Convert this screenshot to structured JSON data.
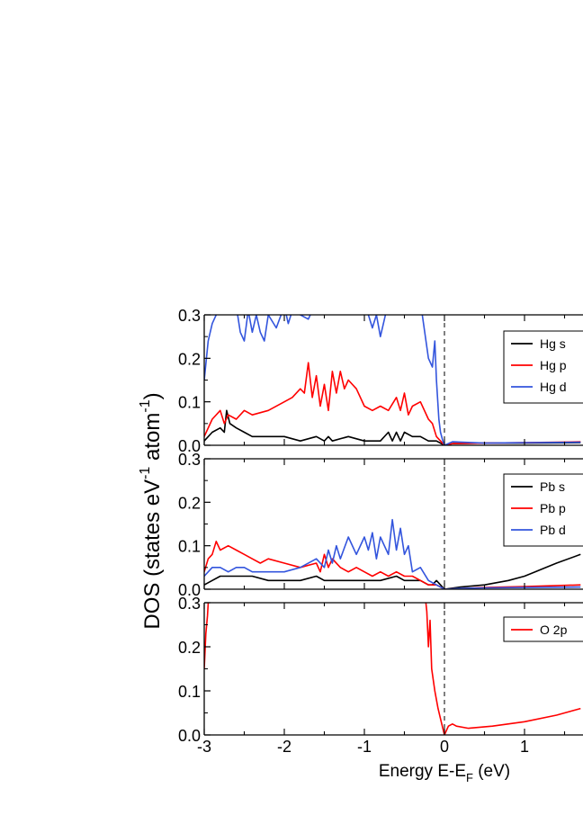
{
  "chart_data": {
    "type": "line",
    "xlabel_main": "Energy E-E",
    "xlabel_sub": "F",
    "xlabel_tail": " (eV)",
    "ylabel_main": "DOS (states eV",
    "ylabel_sup1": "-1",
    "ylabel_mid": " atom",
    "ylabel_sup2": "-1",
    "ylabel_tail": ")",
    "x_ticks": [
      "-3",
      "-2",
      "-1",
      "0",
      "1"
    ],
    "xlim": [
      -3,
      1.7
    ],
    "fermi_level": 0,
    "panels": [
      {
        "ylim": [
          0,
          0.3
        ],
        "y_ticks": [
          "0.0",
          "0.1",
          "0.2",
          "0.3"
        ],
        "legend": [
          "Hg s",
          "Hg p",
          "Hg d"
        ],
        "series": [
          {
            "name": "Hg s",
            "color": "#000000",
            "x": [
              -3,
              -2.9,
              -2.8,
              -2.75,
              -2.72,
              -2.68,
              -2.6,
              -2.5,
              -2.4,
              -2.2,
              -2.0,
              -1.8,
              -1.6,
              -1.5,
              -1.45,
              -1.4,
              -1.2,
              -1.0,
              -0.8,
              -0.7,
              -0.65,
              -0.6,
              -0.55,
              -0.5,
              -0.4,
              -0.3,
              -0.2,
              -0.1,
              0,
              0.1,
              0.5,
              1.0,
              1.7
            ],
            "y": [
              0.01,
              0.03,
              0.04,
              0.03,
              0.08,
              0.05,
              0.04,
              0.03,
              0.02,
              0.02,
              0.02,
              0.01,
              0.02,
              0.01,
              0.02,
              0.01,
              0.02,
              0.01,
              0.01,
              0.03,
              0.01,
              0.03,
              0.01,
              0.03,
              0.02,
              0.02,
              0.01,
              0.01,
              0.0,
              0.004,
              0.005,
              0.005,
              0.006
            ]
          },
          {
            "name": "Hg p",
            "color": "#ff0000",
            "x": [
              -3,
              -2.9,
              -2.8,
              -2.75,
              -2.7,
              -2.6,
              -2.5,
              -2.4,
              -2.2,
              -2.0,
              -1.9,
              -1.8,
              -1.75,
              -1.7,
              -1.65,
              -1.6,
              -1.55,
              -1.5,
              -1.45,
              -1.4,
              -1.35,
              -1.3,
              -1.25,
              -1.2,
              -1.1,
              -1.0,
              -0.9,
              -0.8,
              -0.7,
              -0.6,
              -0.55,
              -0.5,
              -0.45,
              -0.4,
              -0.3,
              -0.2,
              -0.15,
              -0.1,
              -0.05,
              0,
              0.1,
              0.5,
              1.0,
              1.7
            ],
            "y": [
              0.02,
              0.06,
              0.08,
              0.05,
              0.07,
              0.06,
              0.08,
              0.07,
              0.08,
              0.1,
              0.11,
              0.13,
              0.12,
              0.19,
              0.11,
              0.16,
              0.09,
              0.14,
              0.08,
              0.17,
              0.12,
              0.17,
              0.13,
              0.15,
              0.13,
              0.09,
              0.08,
              0.09,
              0.08,
              0.11,
              0.08,
              0.12,
              0.07,
              0.09,
              0.1,
              0.06,
              0.05,
              0.02,
              0.01,
              0.0,
              0.004,
              0.005,
              0.006,
              0.008
            ]
          },
          {
            "name": "Hg d",
            "color": "#3355dd",
            "x": [
              -3,
              -2.95,
              -2.9,
              -2.85,
              -2.8,
              -2.7,
              -2.6,
              -2.55,
              -2.5,
              -2.45,
              -2.4,
              -2.35,
              -2.3,
              -2.25,
              -2.2,
              -2.1,
              -2.0,
              -1.95,
              -1.9,
              -1.7,
              -1.65,
              -1.6,
              -1.4,
              -1.2,
              -1.0,
              -0.9,
              -0.85,
              -0.8,
              -0.75,
              -0.7,
              -0.3,
              -0.2,
              -0.15,
              -0.12,
              -0.1,
              -0.07,
              -0.05,
              -0.02,
              0,
              0.1,
              0.5,
              1.0,
              1.7
            ],
            "y": [
              0.15,
              0.24,
              0.28,
              0.3,
              0.32,
              0.33,
              0.32,
              0.26,
              0.24,
              0.31,
              0.26,
              0.3,
              0.26,
              0.24,
              0.3,
              0.27,
              0.32,
              0.28,
              0.31,
              0.29,
              0.31,
              0.32,
              0.33,
              0.32,
              0.33,
              0.27,
              0.3,
              0.25,
              0.29,
              0.33,
              0.33,
              0.2,
              0.18,
              0.24,
              0.15,
              0.06,
              0.03,
              0.01,
              0.0,
              0.008,
              0.005,
              0.006,
              0.007
            ]
          }
        ]
      },
      {
        "ylim": [
          0,
          0.3
        ],
        "y_ticks": [
          "0.0",
          "0.1",
          "0.2",
          "0.3"
        ],
        "legend": [
          "Pb s",
          "Pb p",
          "Pb d"
        ],
        "series": [
          {
            "name": "Pb s",
            "color": "#000000",
            "x": [
              -3,
              -2.9,
              -2.8,
              -2.7,
              -2.6,
              -2.4,
              -2.2,
              -2.0,
              -1.8,
              -1.6,
              -1.5,
              -1.4,
              -1.2,
              -1.0,
              -0.8,
              -0.6,
              -0.5,
              -0.4,
              -0.3,
              -0.2,
              -0.15,
              -0.1,
              -0.05,
              0,
              0.2,
              0.5,
              0.8,
              1.0,
              1.2,
              1.4,
              1.7
            ],
            "y": [
              0.01,
              0.02,
              0.03,
              0.03,
              0.03,
              0.03,
              0.02,
              0.02,
              0.02,
              0.03,
              0.02,
              0.02,
              0.02,
              0.02,
              0.02,
              0.03,
              0.02,
              0.02,
              0.02,
              0.01,
              0.01,
              0.02,
              0.01,
              0.0,
              0.005,
              0.01,
              0.02,
              0.03,
              0.045,
              0.06,
              0.08
            ]
          },
          {
            "name": "Pb p",
            "color": "#ff0000",
            "x": [
              -3,
              -2.95,
              -2.9,
              -2.85,
              -2.8,
              -2.7,
              -2.6,
              -2.5,
              -2.4,
              -2.3,
              -2.2,
              -2.0,
              -1.8,
              -1.6,
              -1.55,
              -1.5,
              -1.45,
              -1.4,
              -1.3,
              -1.2,
              -1.1,
              -1.0,
              -0.9,
              -0.8,
              -0.7,
              -0.6,
              -0.5,
              -0.4,
              -0.3,
              -0.2,
              -0.1,
              0,
              0.5,
              1.0,
              1.7
            ],
            "y": [
              0.04,
              0.07,
              0.08,
              0.11,
              0.09,
              0.1,
              0.09,
              0.08,
              0.07,
              0.06,
              0.07,
              0.06,
              0.05,
              0.06,
              0.04,
              0.08,
              0.05,
              0.07,
              0.05,
              0.04,
              0.05,
              0.04,
              0.03,
              0.04,
              0.03,
              0.04,
              0.03,
              0.03,
              0.02,
              0.01,
              0.01,
              0.0,
              0.004,
              0.006,
              0.01
            ]
          },
          {
            "name": "Pb d",
            "color": "#3355dd",
            "x": [
              -3,
              -2.9,
              -2.8,
              -2.7,
              -2.6,
              -2.5,
              -2.4,
              -2.2,
              -2.0,
              -1.8,
              -1.6,
              -1.5,
              -1.45,
              -1.4,
              -1.35,
              -1.3,
              -1.2,
              -1.1,
              -1.0,
              -0.95,
              -0.9,
              -0.85,
              -0.8,
              -0.7,
              -0.65,
              -0.6,
              -0.55,
              -0.5,
              -0.45,
              -0.4,
              -0.3,
              -0.2,
              -0.1,
              -0.05,
              0,
              0.2,
              0.5,
              1.0,
              1.7
            ],
            "y": [
              0.03,
              0.05,
              0.05,
              0.04,
              0.05,
              0.05,
              0.04,
              0.04,
              0.04,
              0.05,
              0.07,
              0.05,
              0.09,
              0.06,
              0.1,
              0.07,
              0.12,
              0.08,
              0.12,
              0.09,
              0.13,
              0.07,
              0.12,
              0.08,
              0.16,
              0.09,
              0.14,
              0.08,
              0.1,
              0.04,
              0.05,
              0.02,
              0.01,
              0.005,
              0.0,
              0.002,
              0.003,
              0.004,
              0.005
            ]
          }
        ]
      },
      {
        "ylim": [
          0,
          0.3
        ],
        "y_ticks": [
          "0.0",
          "0.1",
          "0.2",
          "0.3"
        ],
        "legend": [
          "O 2p"
        ],
        "series": [
          {
            "name": "O 2p",
            "color": "#ff0000",
            "x": [
              -3,
              -2.98,
              -2.96,
              -2.94,
              -0.25,
              -0.22,
              -0.2,
              -0.18,
              -0.16,
              -0.12,
              -0.08,
              -0.04,
              0,
              0.05,
              0.1,
              0.15,
              0.3,
              0.6,
              1.0,
              1.4,
              1.7
            ],
            "y": [
              0.15,
              0.23,
              0.27,
              0.33,
              0.33,
              0.28,
              0.2,
              0.26,
              0.15,
              0.1,
              0.06,
              0.03,
              0.0,
              0.02,
              0.025,
              0.02,
              0.015,
              0.02,
              0.03,
              0.045,
              0.06
            ]
          }
        ]
      }
    ]
  }
}
